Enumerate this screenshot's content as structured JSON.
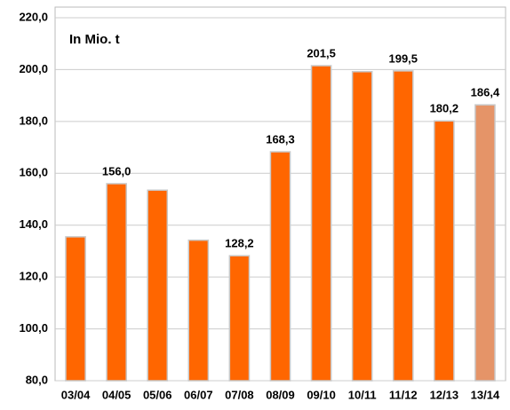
{
  "chart_data": {
    "type": "bar",
    "annotation": "In Mio. t",
    "categories": [
      "03/04",
      "04/05",
      "05/06",
      "06/07",
      "07/08",
      "08/09",
      "09/10",
      "10/11",
      "11/12",
      "12/13",
      "13/14"
    ],
    "values": [
      135.5,
      156.0,
      153.5,
      134.2,
      128.2,
      168.3,
      201.5,
      199.2,
      199.5,
      180.2,
      186.4
    ],
    "value_labels": [
      null,
      "156,0",
      null,
      null,
      "128,2",
      "168,3",
      "201,5",
      null,
      "199,5",
      "180,2",
      "186,4"
    ],
    "colors": [
      "#ff6600",
      "#ff6600",
      "#ff6600",
      "#ff6600",
      "#ff6600",
      "#ff6600",
      "#ff6600",
      "#ff6600",
      "#ff6600",
      "#ff6600",
      "#e59468"
    ],
    "ylim": [
      80,
      220
    ],
    "yticks": [
      {
        "value": 80,
        "label": "80,0"
      },
      {
        "value": 100,
        "label": "100,0"
      },
      {
        "value": 120,
        "label": "120,0"
      },
      {
        "value": 140,
        "label": "140,0"
      },
      {
        "value": 160,
        "label": "160,0"
      },
      {
        "value": 180,
        "label": "180,0"
      },
      {
        "value": 200,
        "label": "200,0"
      },
      {
        "value": 220,
        "label": "220,0"
      }
    ],
    "grid": true
  }
}
